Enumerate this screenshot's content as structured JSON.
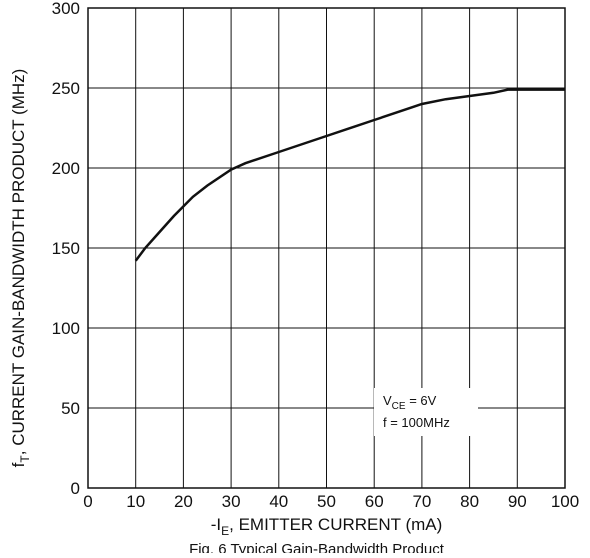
{
  "chart_data": {
    "type": "line",
    "caption": "Fig. 6 Typical Gain-Bandwidth Product",
    "xlabel": [
      "-I",
      "E",
      ", EMITTER CURRENT (mA)"
    ],
    "ylabel": [
      "f",
      "T",
      ", CURRENT GAIN-BANDWIDTH PRODUCT (MHz)"
    ],
    "annotation": [
      [
        "V",
        "CE",
        " = 6V"
      ],
      [
        "f = 100MHz"
      ]
    ],
    "x": [
      10,
      12,
      15,
      18,
      20,
      22,
      25,
      30,
      33,
      40,
      50,
      60,
      68,
      70,
      75,
      80,
      85,
      88,
      90,
      100
    ],
    "values": [
      142,
      150,
      160,
      170,
      176,
      182,
      189,
      199,
      203,
      210,
      220,
      230,
      238,
      240,
      243,
      245,
      247,
      249,
      249,
      249
    ],
    "color": "#111111",
    "xlim": [
      0,
      100
    ],
    "xticks": [
      0,
      10,
      20,
      30,
      40,
      50,
      60,
      70,
      80,
      90,
      100
    ],
    "ylim": [
      0,
      300
    ],
    "yticks": [
      0,
      50,
      100,
      150,
      200,
      250,
      300
    ],
    "grid": true
  }
}
